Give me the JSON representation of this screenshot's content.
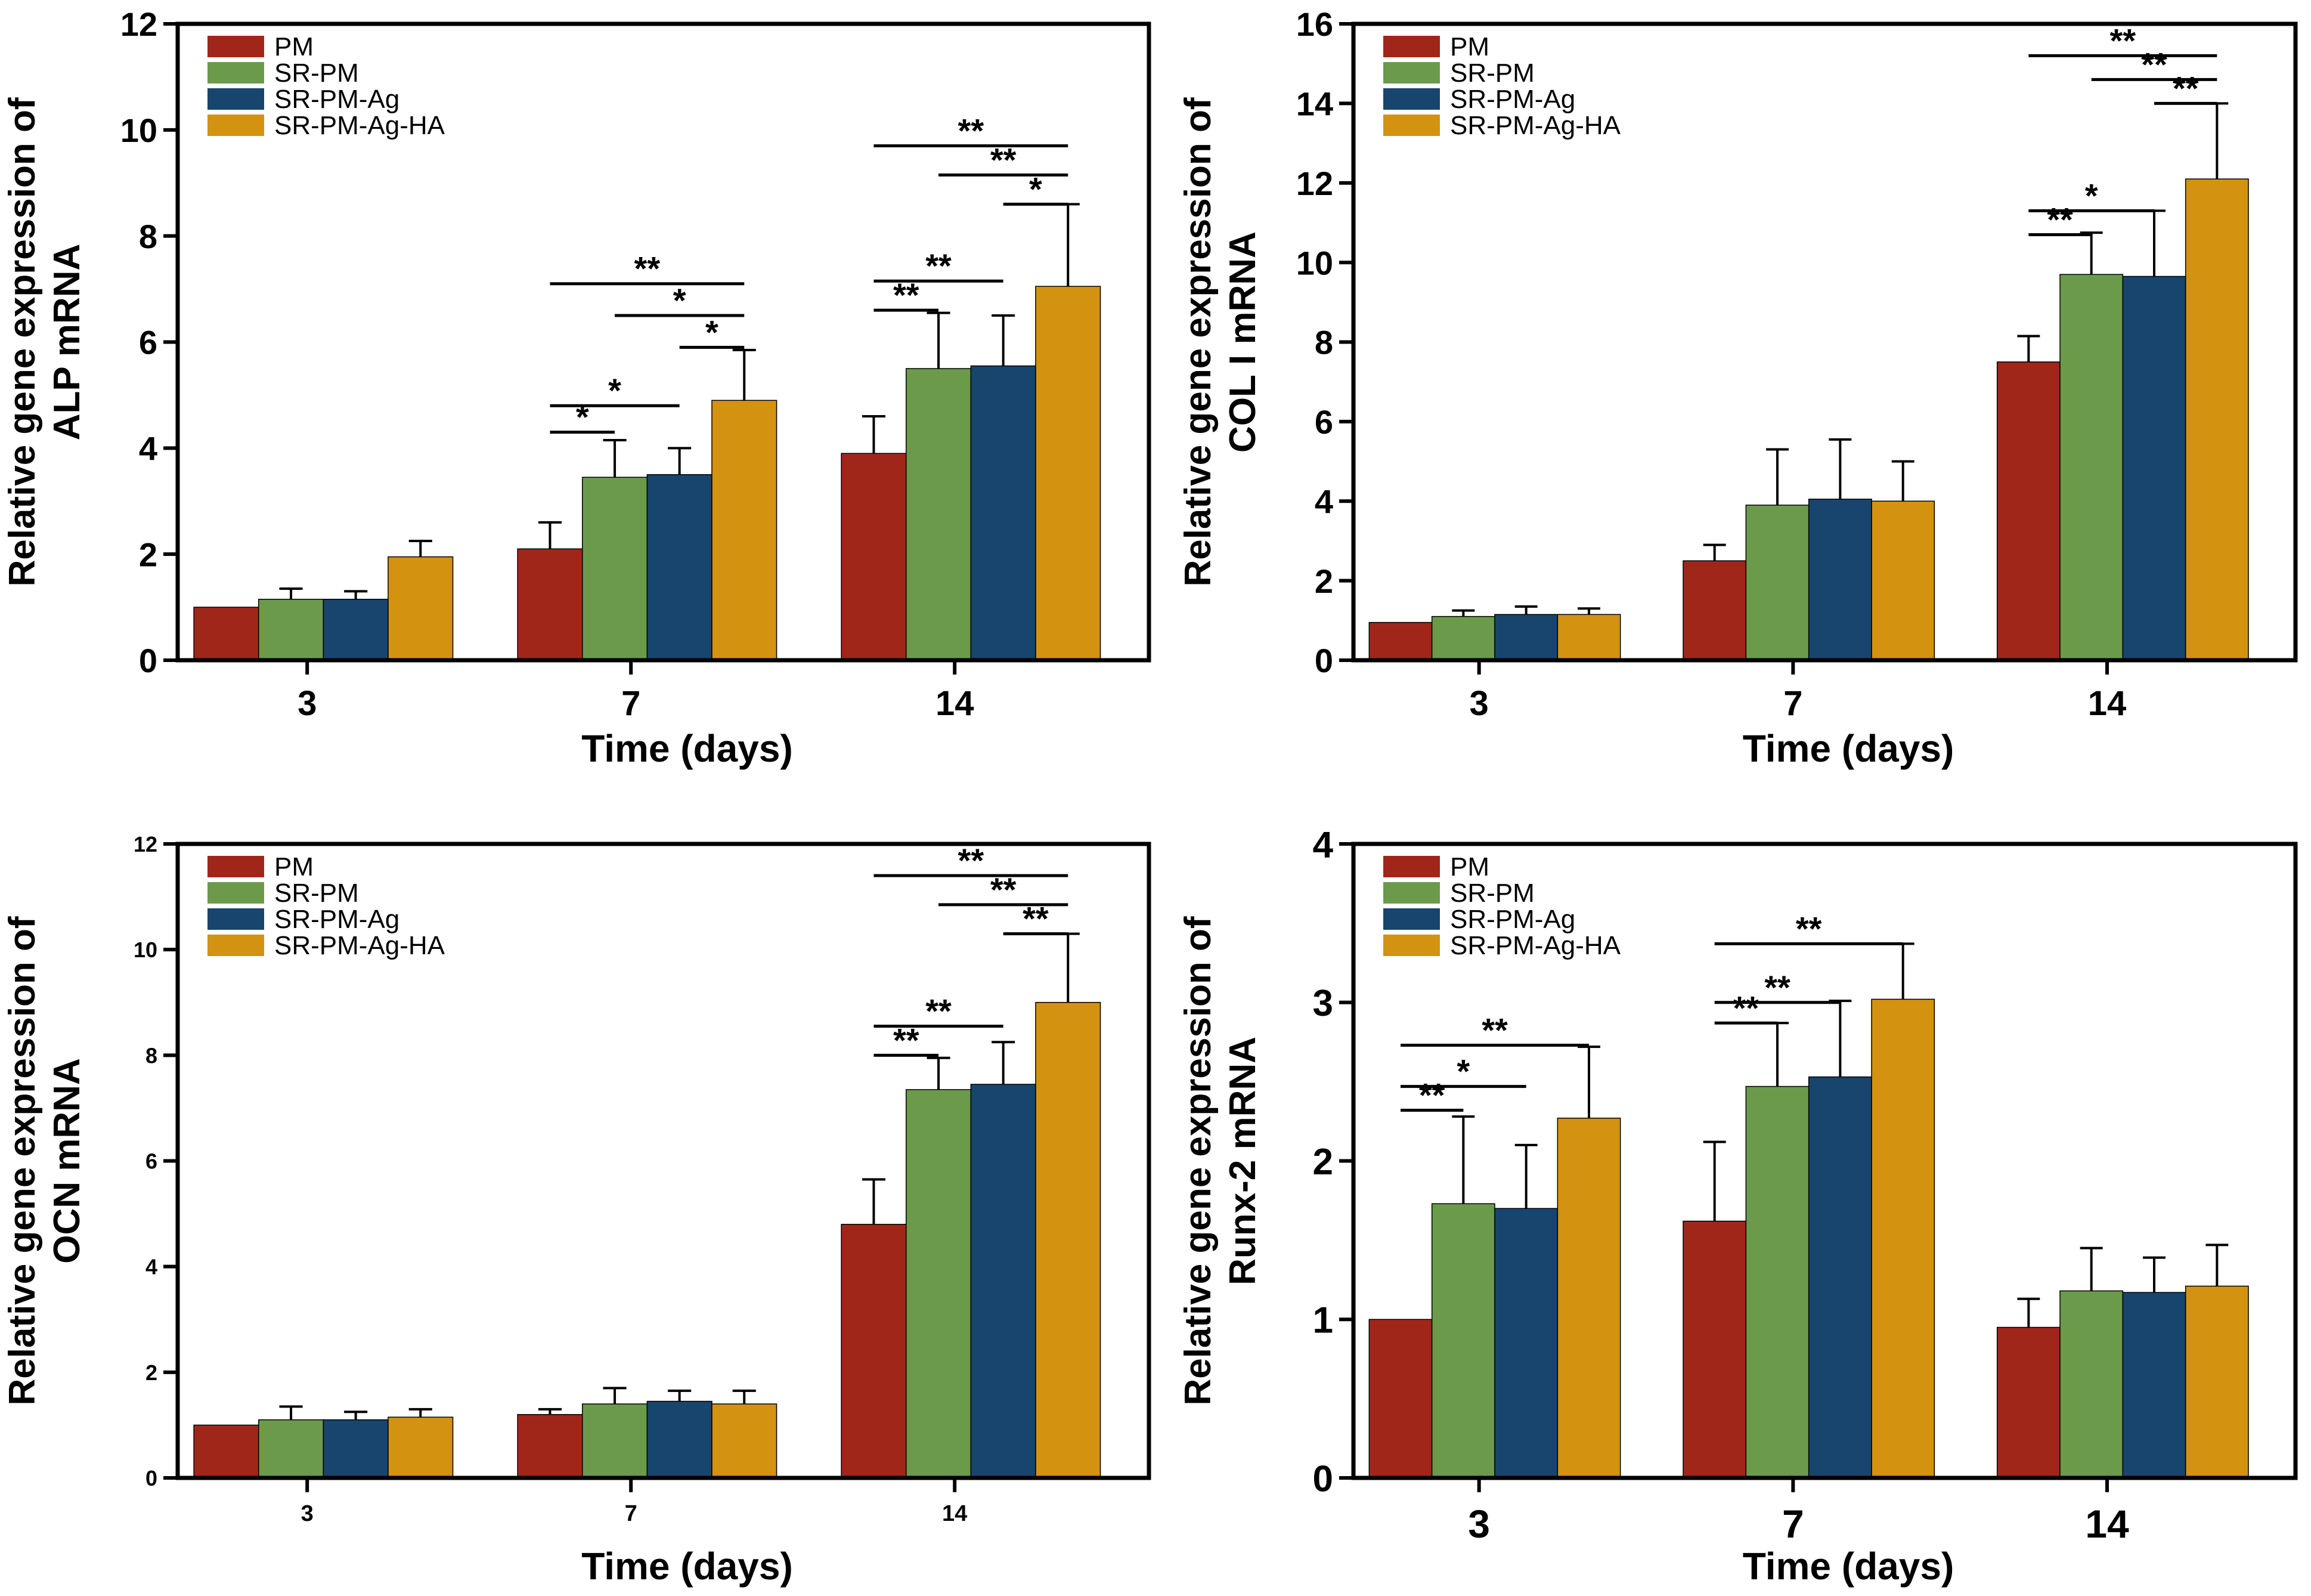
{
  "colors": {
    "PM": "#A1261A",
    "SR-PM": "#6B9A4B",
    "SR-PM-Ag": "#17456E",
    "SR-PM-Ag-HA": "#D3920F",
    "axis": "#000000"
  },
  "chart_data": [
    {
      "type": "bar",
      "panel": "top-left",
      "ylabel_line1": "Relative gene expression of",
      "ylabel_line2": "ALP mRNA",
      "xlabel": "Time (days)",
      "categories": [
        "3",
        "7",
        "14"
      ],
      "ylim": [
        0,
        12
      ],
      "yticks": [
        "0",
        "2",
        "4",
        "6",
        "8",
        "10",
        "12"
      ],
      "legend": [
        "PM",
        "SR-PM",
        "SR-PM-Ag",
        "SR-PM-Ag-HA"
      ],
      "legend_position": "top-left",
      "series": [
        {
          "name": "PM",
          "values": [
            1.0,
            2.1,
            3.9
          ],
          "errors": [
            0.0,
            0.5,
            0.7
          ]
        },
        {
          "name": "SR-PM",
          "values": [
            1.15,
            3.45,
            5.5
          ],
          "errors": [
            0.2,
            0.7,
            1.05
          ]
        },
        {
          "name": "SR-PM-Ag",
          "values": [
            1.15,
            3.5,
            5.55
          ],
          "errors": [
            0.15,
            0.5,
            0.95
          ]
        },
        {
          "name": "SR-PM-Ag-HA",
          "values": [
            1.95,
            4.9,
            7.05
          ],
          "errors": [
            0.3,
            0.95,
            1.55
          ]
        }
      ],
      "significance": [
        {
          "group": 1,
          "from": 0,
          "to": 1,
          "y": 4.3,
          "label": "*"
        },
        {
          "group": 1,
          "from": 0,
          "to": 2,
          "y": 4.8,
          "label": "*"
        },
        {
          "group": 1,
          "from": 2,
          "to": 3,
          "y": 5.9,
          "label": "*"
        },
        {
          "group": 1,
          "from": 1,
          "to": 3,
          "y": 6.5,
          "label": "*"
        },
        {
          "group": 1,
          "from": 0,
          "to": 3,
          "y": 7.1,
          "label": "**"
        },
        {
          "group": 2,
          "from": 0,
          "to": 1,
          "y": 6.6,
          "label": "**"
        },
        {
          "group": 2,
          "from": 0,
          "to": 2,
          "y": 7.15,
          "label": "**"
        },
        {
          "group": 2,
          "from": 2,
          "to": 3,
          "y": 8.6,
          "label": "*"
        },
        {
          "group": 2,
          "from": 1,
          "to": 3,
          "y": 9.15,
          "label": "**"
        },
        {
          "group": 2,
          "from": 0,
          "to": 3,
          "y": 9.7,
          "label": "**"
        }
      ]
    },
    {
      "type": "bar",
      "panel": "top-right",
      "ylabel_line1": "Relative gene expression of",
      "ylabel_line2": "COL I mRNA",
      "xlabel": "Time (days)",
      "categories": [
        "3",
        "7",
        "14"
      ],
      "ylim": [
        0,
        16
      ],
      "yticks": [
        "0",
        "2",
        "4",
        "6",
        "8",
        "10",
        "12",
        "14",
        "16"
      ],
      "legend": [
        "PM",
        "SR-PM",
        "SR-PM-Ag",
        "SR-PM-Ag-HA"
      ],
      "legend_position": "top-left",
      "series": [
        {
          "name": "PM",
          "values": [
            0.95,
            2.5,
            7.5
          ],
          "errors": [
            0.0,
            0.4,
            0.65
          ]
        },
        {
          "name": "SR-PM",
          "values": [
            1.1,
            3.9,
            9.7
          ],
          "errors": [
            0.15,
            1.4,
            1.05
          ]
        },
        {
          "name": "SR-PM-Ag",
          "values": [
            1.15,
            4.05,
            9.65
          ],
          "errors": [
            0.2,
            1.5,
            1.65
          ]
        },
        {
          "name": "SR-PM-Ag-HA",
          "values": [
            1.15,
            4.0,
            12.1
          ],
          "errors": [
            0.15,
            1.0,
            1.9
          ]
        }
      ],
      "significance": [
        {
          "group": 2,
          "from": 0,
          "to": 1,
          "y": 10.7,
          "label": "**"
        },
        {
          "group": 2,
          "from": 0,
          "to": 2,
          "y": 11.3,
          "label": "*"
        },
        {
          "group": 2,
          "from": 2,
          "to": 3,
          "y": 14.0,
          "label": "**"
        },
        {
          "group": 2,
          "from": 1,
          "to": 3,
          "y": 14.6,
          "label": "**"
        },
        {
          "group": 2,
          "from": 0,
          "to": 3,
          "y": 15.2,
          "label": "**"
        }
      ]
    },
    {
      "type": "bar",
      "panel": "bottom-left",
      "ylabel_line1": "Relative gene expression of",
      "ylabel_line2": "OCN mRNA",
      "xlabel": "Time (days)",
      "categories": [
        "3",
        "7",
        "14"
      ],
      "ylim": [
        0,
        12
      ],
      "yticks": [
        "0",
        "2",
        "4",
        "6",
        "8",
        "10",
        "12"
      ],
      "legend": [
        "PM",
        "SR-PM",
        "SR-PM-Ag",
        "SR-PM-Ag-HA"
      ],
      "legend_position": "top-left",
      "series": [
        {
          "name": "PM",
          "values": [
            1.0,
            1.2,
            4.8
          ],
          "errors": [
            0.0,
            0.1,
            0.85
          ]
        },
        {
          "name": "SR-PM",
          "values": [
            1.1,
            1.4,
            7.35
          ],
          "errors": [
            0.25,
            0.3,
            0.6
          ]
        },
        {
          "name": "SR-PM-Ag",
          "values": [
            1.1,
            1.45,
            7.45
          ],
          "errors": [
            0.15,
            0.2,
            0.8
          ]
        },
        {
          "name": "SR-PM-Ag-HA",
          "values": [
            1.15,
            1.4,
            9.0
          ],
          "errors": [
            0.15,
            0.25,
            1.3
          ]
        }
      ],
      "significance": [
        {
          "group": 2,
          "from": 0,
          "to": 1,
          "y": 8.0,
          "label": "**"
        },
        {
          "group": 2,
          "from": 0,
          "to": 2,
          "y": 8.55,
          "label": "**"
        },
        {
          "group": 2,
          "from": 2,
          "to": 3,
          "y": 10.3,
          "label": "**"
        },
        {
          "group": 2,
          "from": 1,
          "to": 3,
          "y": 10.85,
          "label": "**"
        },
        {
          "group": 2,
          "from": 0,
          "to": 3,
          "y": 11.4,
          "label": "**"
        }
      ]
    },
    {
      "type": "bar",
      "panel": "bottom-right",
      "ylabel_line1": "Relative gene expression of",
      "ylabel_line2": "Runx-2 mRNA",
      "xlabel": "Time (days)",
      "categories": [
        "3",
        "7",
        "14"
      ],
      "ylim": [
        0,
        4
      ],
      "yticks": [
        "0",
        "1",
        "2",
        "3",
        "4"
      ],
      "legend": [
        "PM",
        "SR-PM",
        "SR-PM-Ag",
        "SR-PM-Ag-HA"
      ],
      "legend_position": "top-left",
      "series": [
        {
          "name": "PM",
          "values": [
            1.0,
            1.62,
            0.95
          ],
          "errors": [
            0.0,
            0.5,
            0.18
          ]
        },
        {
          "name": "SR-PM",
          "values": [
            1.73,
            2.47,
            1.18
          ],
          "errors": [
            0.55,
            0.4,
            0.27
          ]
        },
        {
          "name": "SR-PM-Ag",
          "values": [
            1.7,
            2.53,
            1.17
          ],
          "errors": [
            0.4,
            0.48,
            0.22
          ]
        },
        {
          "name": "SR-PM-Ag-HA",
          "values": [
            2.27,
            3.02,
            1.21
          ],
          "errors": [
            0.45,
            0.35,
            0.26
          ]
        }
      ],
      "significance": [
        {
          "group": 0,
          "from": 0,
          "to": 1,
          "y": 2.32,
          "label": "**"
        },
        {
          "group": 0,
          "from": 0,
          "to": 2,
          "y": 2.47,
          "label": "*"
        },
        {
          "group": 0,
          "from": 0,
          "to": 3,
          "y": 2.73,
          "label": "**"
        },
        {
          "group": 1,
          "from": 0,
          "to": 1,
          "y": 2.87,
          "label": "**"
        },
        {
          "group": 1,
          "from": 0,
          "to": 2,
          "y": 3.0,
          "label": "**"
        },
        {
          "group": 1,
          "from": 0,
          "to": 3,
          "y": 3.37,
          "label": "**"
        }
      ]
    }
  ]
}
